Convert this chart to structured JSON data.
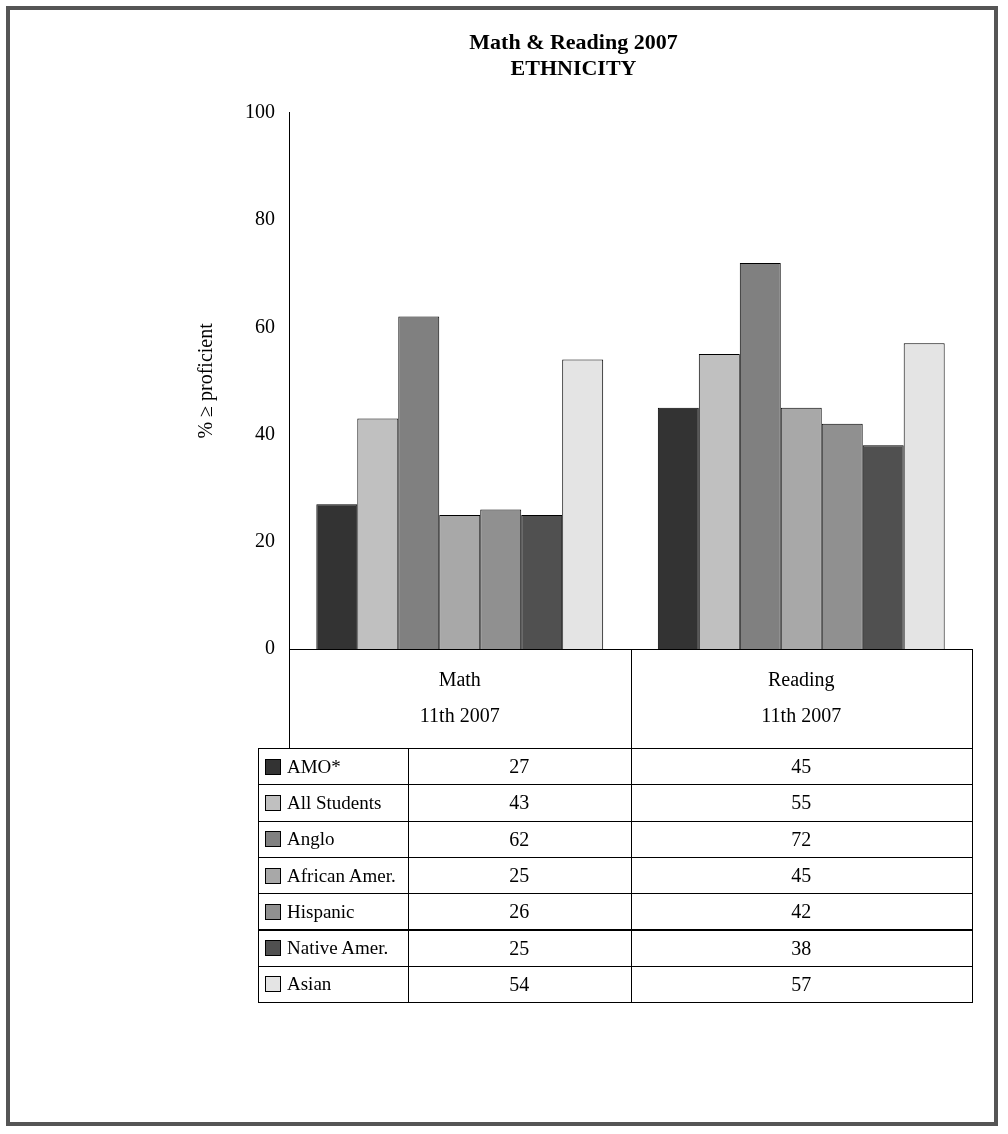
{
  "chart_data": {
    "type": "bar",
    "title": "Math & Reading 2007",
    "subtitle": "ETHNICITY",
    "ylabel": "% ≥ proficient",
    "categories": [
      "Math\n11th 2007",
      "Reading\n11th 2007"
    ],
    "series": [
      {
        "name": "AMO*",
        "color": "#333333",
        "values": [
          27,
          45
        ]
      },
      {
        "name": "All Students",
        "color": "#c0c0c0",
        "values": [
          43,
          55
        ]
      },
      {
        "name": "Anglo",
        "color": "#808080",
        "values": [
          62,
          72
        ]
      },
      {
        "name": "African Amer.",
        "color": "#a8a8a8",
        "values": [
          25,
          45
        ]
      },
      {
        "name": "Hispanic",
        "color": "#909090",
        "values": [
          26,
          42
        ]
      },
      {
        "name": "Native Amer.",
        "color": "#505050",
        "values": [
          25,
          38
        ]
      },
      {
        "name": "Asian",
        "color": "#e4e4e4",
        "values": [
          54,
          57
        ]
      }
    ],
    "ylim": [
      0,
      100
    ],
    "yticks": [
      0,
      20,
      40,
      60,
      80,
      100
    ],
    "grid": false,
    "legend": "bottom",
    "data_labels": true
  }
}
